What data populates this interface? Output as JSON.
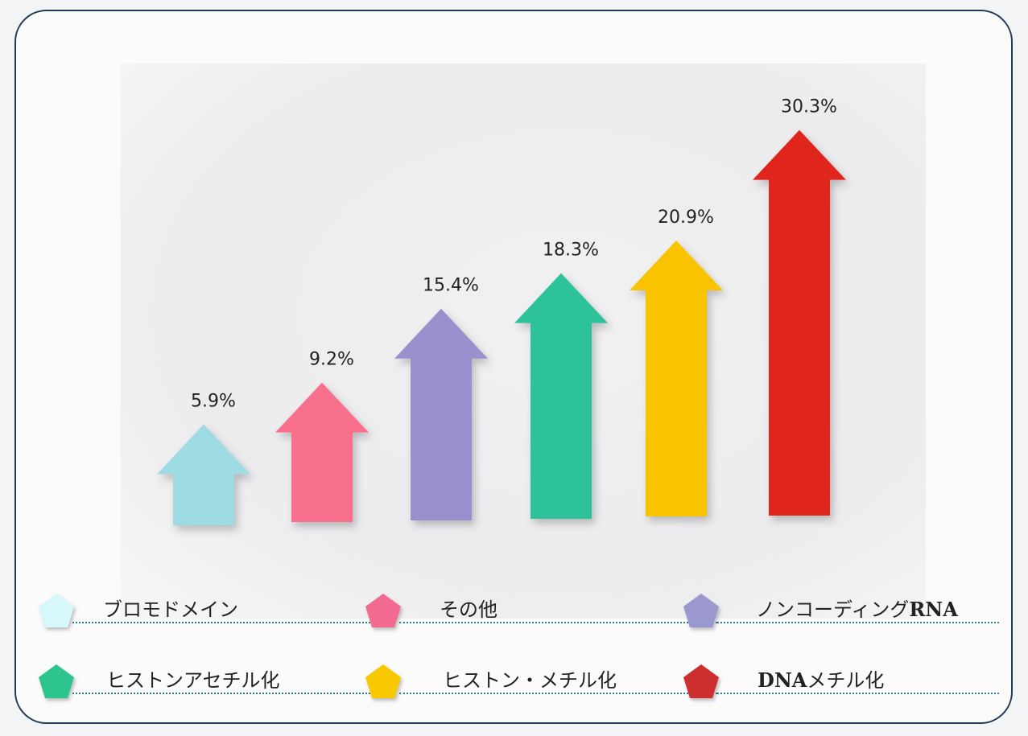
{
  "chart_data": {
    "type": "bar",
    "categories": [
      "ブロモドメイン",
      "その他",
      "ノンコーディングRNA",
      "ヒストンアセチル化",
      "ヒストン・メチル化",
      "DNAメチル化"
    ],
    "values": [
      5.9,
      9.2,
      15.4,
      18.3,
      20.9,
      30.3
    ],
    "value_labels": [
      "5.9%",
      "9.2%",
      "15.4%",
      "18.3%",
      "20.9%",
      "30.3%"
    ],
    "colors": [
      "#9fdbe3",
      "#f9708c",
      "#9c8fce",
      "#2fc29a",
      "#f9c300",
      "#e0281f"
    ],
    "unit": "%",
    "title": "",
    "xlabel": "",
    "ylabel": ""
  },
  "legend": [
    {
      "label": "ブロモドメイン",
      "icon": "pentagon-icon",
      "color": "#d6f8fb"
    },
    {
      "label": "その他",
      "icon": "pentagon-icon",
      "color": "#f26a90"
    },
    {
      "label_prefix": "ノンコーディング",
      "label_bold": "RNA",
      "icon": "pentagon-icon",
      "color": "#9b98cf"
    },
    {
      "label": "ヒストンアセチル化",
      "icon": "pentagon-icon",
      "color": "#2dc48e"
    },
    {
      "label": "ヒストン・メチル化",
      "icon": "pentagon-icon",
      "color": "#f8c800"
    },
    {
      "label_bold": "DNA",
      "label_suffix": "メチル化",
      "icon": "pentagon-icon",
      "color": "#cd2e2e"
    }
  ]
}
